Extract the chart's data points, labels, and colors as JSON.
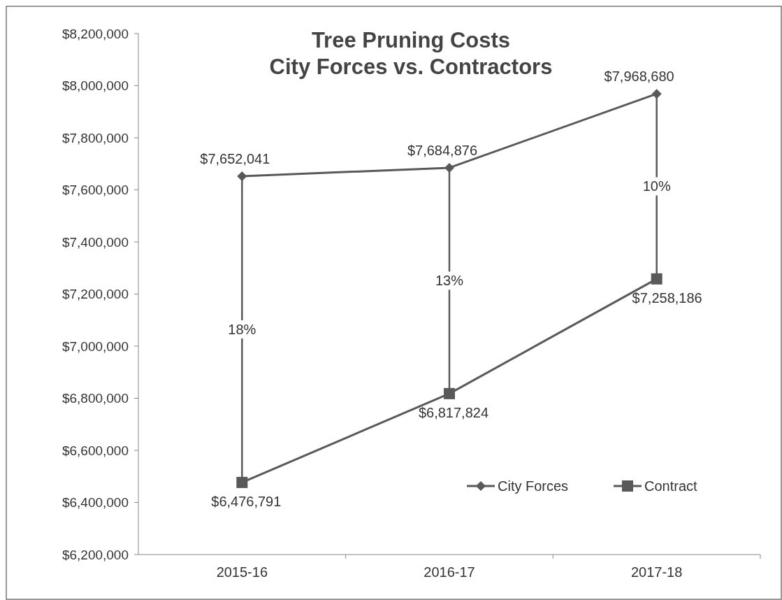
{
  "chart_data": {
    "type": "line",
    "title": "Tree Pruning Costs\nCity Forces vs. Contractors",
    "categories": [
      "2015-16",
      "2016-17",
      "2017-18"
    ],
    "series": [
      {
        "name": "City Forces",
        "color": "#595959",
        "marker": "diamond",
        "values": [
          7652041,
          7684876,
          7968680
        ],
        "value_labels": [
          "$7,652,041",
          "$7,684,876",
          "$7,968,680"
        ]
      },
      {
        "name": "Contract",
        "color": "#595959",
        "marker": "square",
        "values": [
          6476791,
          6817824,
          7258186
        ],
        "value_labels": [
          "$6,476,791",
          "$6,817,824",
          "$7,258,186"
        ]
      }
    ],
    "ylim": [
      6200000,
      8200000
    ],
    "yticks": [
      {
        "value": 6200000,
        "label": "$6,200,000"
      },
      {
        "value": 6400000,
        "label": "$6,400,000"
      },
      {
        "value": 6600000,
        "label": "$6,600,000"
      },
      {
        "value": 6800000,
        "label": "$6,800,000"
      },
      {
        "value": 7000000,
        "label": "$7,000,000"
      },
      {
        "value": 7200000,
        "label": "$7,200,000"
      },
      {
        "value": 7400000,
        "label": "$7,400,000"
      },
      {
        "value": 7600000,
        "label": "$7,600,000"
      },
      {
        "value": 7800000,
        "label": "$7,800,000"
      },
      {
        "value": 8000000,
        "label": "$8,000,000"
      },
      {
        "value": 8200000,
        "label": "$8,200,000"
      }
    ],
    "annotations": [
      "18%",
      "13%",
      "10%"
    ],
    "legend": "bottom right",
    "grid": false,
    "line_style": "solid"
  }
}
